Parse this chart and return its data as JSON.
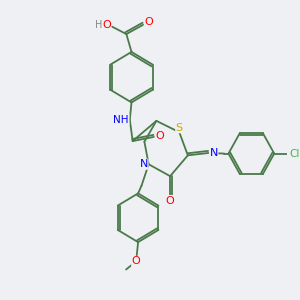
{
  "background_color": "#eef0f4",
  "bond_color": "#4a7a4a",
  "atom_colors": {
    "O": "#ff0000",
    "N": "#0000ff",
    "S": "#ccaa00",
    "Cl": "#4ab04a",
    "H": "#888888",
    "C": "#4a7a4a"
  },
  "font_size": 7.5
}
